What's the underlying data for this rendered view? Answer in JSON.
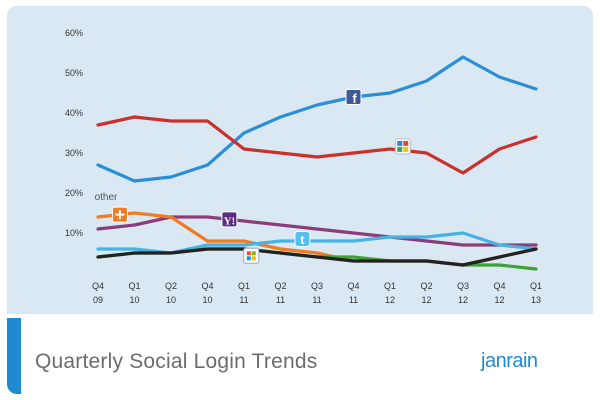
{
  "footer": {
    "title": "Quarterly Social Login Trends",
    "brand": "janrain"
  },
  "chart_data": {
    "type": "line",
    "title": "Quarterly Social Login Trends",
    "categories": [
      [
        "Q4",
        "09"
      ],
      [
        "Q1",
        "10"
      ],
      [
        "Q2",
        "10"
      ],
      [
        "Q4",
        "10"
      ],
      [
        "Q1",
        "11"
      ],
      [
        "Q2",
        "11"
      ],
      [
        "Q3",
        "11"
      ],
      [
        "Q4",
        "11"
      ],
      [
        "Q1",
        "12"
      ],
      [
        "Q2",
        "12"
      ],
      [
        "Q3",
        "12"
      ],
      [
        "Q4",
        "12"
      ],
      [
        "Q1",
        "13"
      ]
    ],
    "y_ticks": [
      "10%",
      "20%",
      "30%",
      "40%",
      "50%",
      "60%"
    ],
    "ylim": [
      0,
      60
    ],
    "grid": false,
    "series": [
      {
        "icon": "facebook-icon",
        "color": "#2a8fd4",
        "values": [
          27,
          23,
          24,
          27,
          35,
          39,
          42,
          44,
          45,
          48,
          54,
          49,
          46
        ]
      },
      {
        "icon": "google-icon",
        "color": "#c8312c",
        "values": [
          37,
          39,
          38,
          38,
          31,
          30,
          29,
          30,
          31,
          30,
          25,
          31,
          34
        ]
      },
      {
        "icon": "yahoo-icon",
        "color": "#8a3d7a",
        "values": [
          11,
          12,
          14,
          14,
          13,
          12,
          11,
          10,
          9,
          8,
          7,
          7,
          7
        ]
      },
      {
        "name": "other",
        "icon": "other-icon",
        "color": "#f07b21",
        "values": [
          14,
          15,
          14,
          8,
          8,
          6,
          5,
          3,
          3,
          3,
          2,
          4,
          6
        ]
      },
      {
        "icon": "twitter-icon",
        "color": "#45b3e3",
        "values": [
          6,
          6,
          5,
          7,
          7,
          8,
          8,
          8,
          9,
          9,
          10,
          7,
          6
        ]
      },
      {
        "icon": "windows-live-icon",
        "color": "#3fa136",
        "values": [
          4,
          5,
          5,
          6,
          6,
          5,
          4,
          4,
          3,
          3,
          2,
          2,
          1
        ]
      },
      {
        "icon": "aol-icon",
        "color": "#222222",
        "values": [
          4,
          5,
          5,
          6,
          6,
          5,
          4,
          3,
          3,
          3,
          2,
          4,
          6
        ]
      }
    ]
  }
}
